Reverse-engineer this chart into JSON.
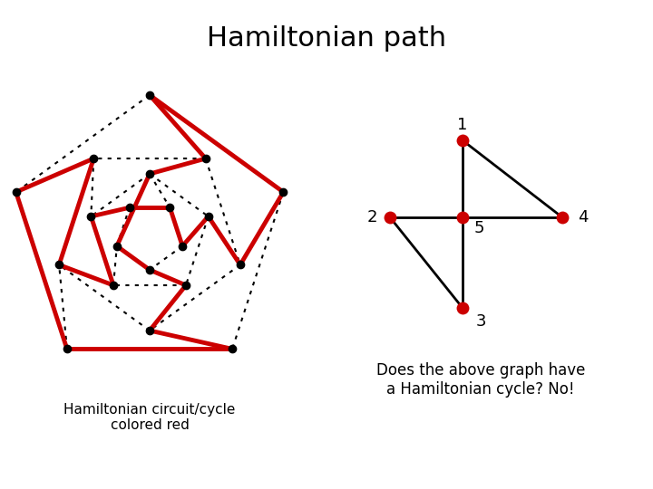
{
  "title": "Hamiltonian path",
  "title_fontsize": 22,
  "left_caption": "Hamiltonian circuit/cycle\ncolored red",
  "right_caption": "Does the above graph have\na Hamiltonian cycle? No!",
  "node_color_red": "#cc0000",
  "node_color_black": "#000000",
  "edge_color_red": "#cc0000",
  "edge_color_dot": "#000000",
  "edge_color_right": "#000000",
  "bg_color": "#ffffff"
}
